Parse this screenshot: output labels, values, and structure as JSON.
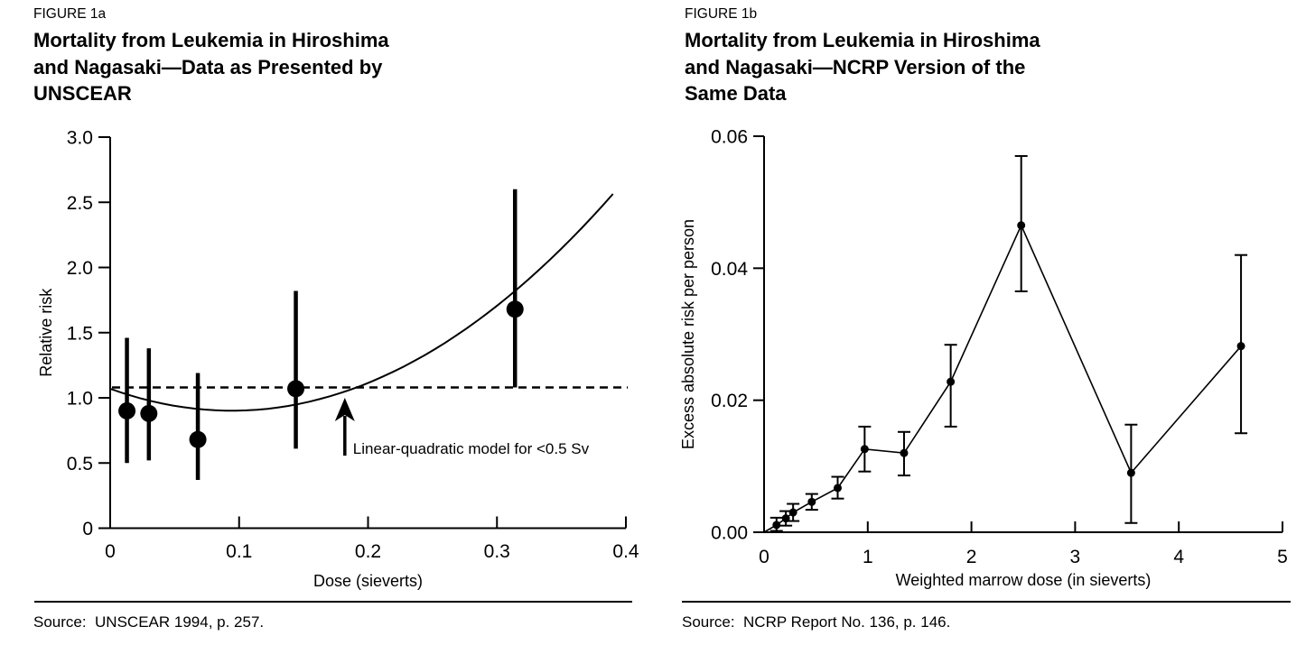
{
  "page": {
    "background": "#ffffff",
    "ink_color": "#000000"
  },
  "figures": [
    {
      "figure_label": "FIGURE 1a",
      "title_lines": [
        "Mortality from Leukemia in Hiroshima",
        "and Nagasaki—Data as Presented by",
        "UNSCEAR"
      ],
      "source": "Source:  UNSCEAR 1994, p. 257.",
      "chart_data": {
        "type": "scatter",
        "title": "Mortality from Leukemia in Hiroshima and Nagasaki—Data as Presented by UNSCEAR",
        "xlabel": "Dose (sieverts)",
        "ylabel": "Relative risk",
        "xlim": [
          0,
          0.4
        ],
        "ylim": [
          0,
          3.0
        ],
        "grid": false,
        "xticks": {
          "values": [
            0,
            0.1,
            0.2,
            0.3,
            0.4
          ],
          "labels": [
            "0",
            "0.1",
            "0.2",
            "0.3",
            "0.4"
          ]
        },
        "yticks": {
          "values": [
            3.0,
            2.5,
            2.0,
            1.5,
            1.0,
            0.5,
            0
          ],
          "labels": [
            "3.0",
            "2.5",
            "2.0",
            "1.5",
            "1.0",
            "0.5",
            "0"
          ]
        },
        "points": [
          {
            "x": 0.013,
            "y": 0.9,
            "lo": 0.5,
            "hi": 1.46
          },
          {
            "x": 0.03,
            "y": 0.88,
            "lo": 0.52,
            "hi": 1.38
          },
          {
            "x": 0.068,
            "y": 0.68,
            "lo": 0.37,
            "hi": 1.19
          },
          {
            "x": 0.144,
            "y": 1.07,
            "lo": 0.61,
            "hi": 1.82
          },
          {
            "x": 0.314,
            "y": 1.68,
            "lo": 1.08,
            "hi": 2.6
          }
        ],
        "reference_line_y": 1.08,
        "connect_points": false,
        "curve": {
          "kind": "quadratic",
          "intercept": 1.07,
          "linear": -3.58,
          "quadratic": 19.0,
          "domain": [
            0,
            0.39
          ]
        },
        "annotation": {
          "text": "Linear-quadratic model for <0.5 Sv",
          "arrow_x": 0.182,
          "arrow_tip_y": 1.0,
          "arrow_base_y": 0.57
        }
      }
    },
    {
      "figure_label": "FIGURE 1b",
      "title_lines": [
        "Mortality from Leukemia in Hiroshima",
        "and Nagasaki—NCRP Version of the",
        "Same Data"
      ],
      "source": "Source:  NCRP Report No. 136, p. 146.",
      "chart_data": {
        "type": "line",
        "title": "Mortality from Leukemia in Hiroshima and Nagasaki—NCRP Version of the Same Data",
        "xlabel": "Weighted marrow dose (in sieverts)",
        "ylabel": "Excess absolute risk per person",
        "xlim": [
          0,
          5
        ],
        "ylim": [
          0,
          0.06
        ],
        "grid": false,
        "xticks": {
          "values": [
            0,
            1,
            2,
            3,
            4,
            5
          ],
          "labels": [
            "0",
            "1",
            "2",
            "3",
            "4",
            "5"
          ]
        },
        "yticks": {
          "values": [
            0.06,
            0.04,
            0.02,
            0.0
          ],
          "labels": [
            "0.06",
            "0.04",
            "0.02",
            "0.00"
          ]
        },
        "points": [
          {
            "x": 0.12,
            "y": 0.0011,
            "lo": 0.0002,
            "hi": 0.0022
          },
          {
            "x": 0.21,
            "y": 0.0021,
            "lo": 0.001,
            "hi": 0.0032
          },
          {
            "x": 0.28,
            "y": 0.003,
            "lo": 0.0017,
            "hi": 0.0043
          },
          {
            "x": 0.46,
            "y": 0.0046,
            "lo": 0.0034,
            "hi": 0.0058
          },
          {
            "x": 0.71,
            "y": 0.0067,
            "lo": 0.0051,
            "hi": 0.0084
          },
          {
            "x": 0.97,
            "y": 0.0126,
            "lo": 0.0092,
            "hi": 0.016
          },
          {
            "x": 1.35,
            "y": 0.012,
            "lo": 0.0086,
            "hi": 0.0152
          },
          {
            "x": 1.8,
            "y": 0.0228,
            "lo": 0.016,
            "hi": 0.0284
          },
          {
            "x": 2.48,
            "y": 0.0465,
            "lo": 0.0365,
            "hi": 0.057
          },
          {
            "x": 3.54,
            "y": 0.009,
            "lo": 0.0014,
            "hi": 0.0163
          },
          {
            "x": 4.6,
            "y": 0.0282,
            "lo": 0.015,
            "hi": 0.042
          }
        ],
        "connect_points": true,
        "line_starts_at_origin": true
      }
    }
  ]
}
